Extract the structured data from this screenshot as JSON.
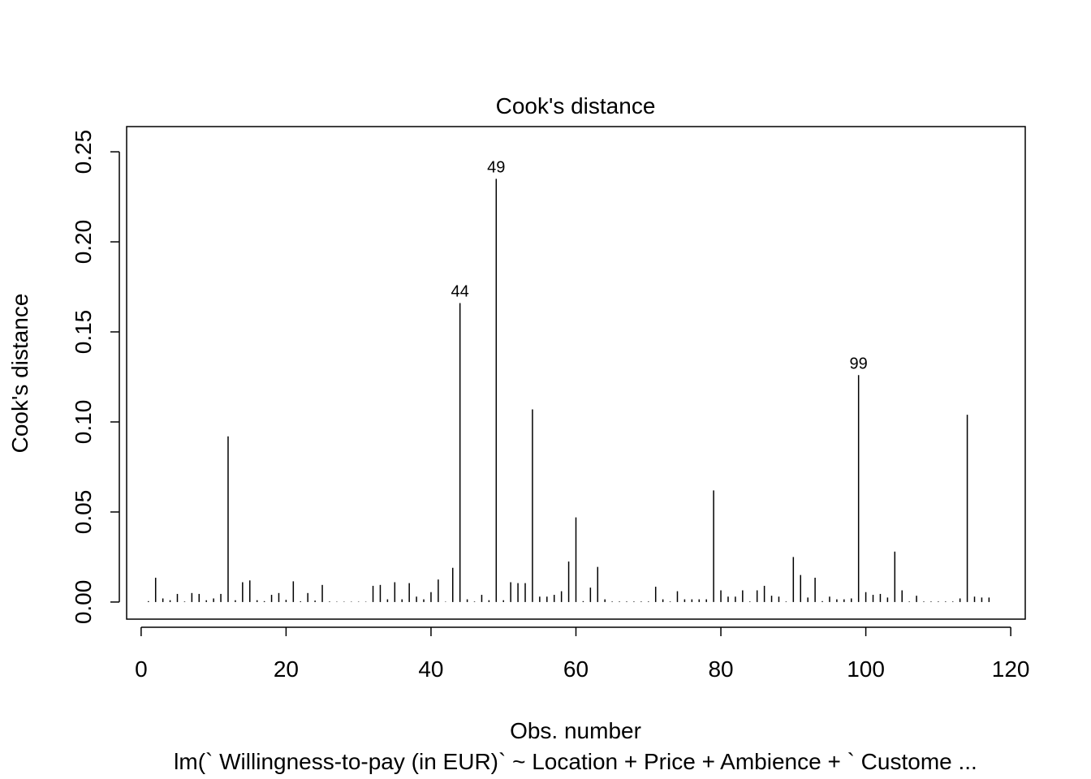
{
  "chart_data": {
    "type": "bar",
    "title": "Cook's distance",
    "xlabel": "Obs. number",
    "ylabel": "Cook's distance",
    "subtitle": "lm(` Willingness-to-pay (in EUR)` ~ Location + Price + Ambience + ` Custome ...",
    "xlim": [
      -2,
      122
    ],
    "ylim": [
      -0.0095,
      0.264
    ],
    "xticks": [
      0,
      20,
      40,
      60,
      80,
      100,
      120
    ],
    "yticks": [
      0.0,
      0.05,
      0.1,
      0.15,
      0.2,
      0.25
    ],
    "ytick_labels": [
      "0.00",
      "0.05",
      "0.10",
      "0.15",
      "0.20",
      "0.25"
    ],
    "x": [
      1,
      2,
      3,
      4,
      5,
      6,
      7,
      8,
      9,
      10,
      11,
      12,
      13,
      14,
      15,
      16,
      17,
      18,
      19,
      20,
      21,
      22,
      23,
      24,
      25,
      26,
      27,
      28,
      29,
      30,
      31,
      32,
      33,
      34,
      35,
      36,
      37,
      38,
      39,
      40,
      41,
      42,
      43,
      44,
      45,
      46,
      47,
      48,
      49,
      50,
      51,
      52,
      53,
      54,
      55,
      56,
      57,
      58,
      59,
      60,
      61,
      62,
      63,
      64,
      65,
      66,
      67,
      68,
      69,
      70,
      71,
      72,
      73,
      74,
      75,
      76,
      77,
      78,
      79,
      80,
      81,
      82,
      83,
      84,
      85,
      86,
      87,
      88,
      89,
      90,
      91,
      92,
      93,
      94,
      95,
      96,
      97,
      98,
      99,
      100,
      101,
      102,
      103,
      104,
      105,
      106,
      107,
      108,
      109,
      110,
      111,
      112,
      113,
      114,
      115,
      116,
      117
    ],
    "values": [
      0.0005,
      0.0135,
      0.002,
      0.001,
      0.0045,
      0.0003,
      0.005,
      0.0045,
      0.001,
      0.002,
      0.0045,
      0.092,
      0.001,
      0.011,
      0.012,
      0.001,
      0.0005,
      0.004,
      0.005,
      0.0012,
      0.0115,
      0.0004,
      0.005,
      0.0008,
      0.0095,
      0.0003,
      0.0002,
      0.0002,
      0.0002,
      0.0002,
      0.0002,
      0.009,
      0.0095,
      0.0015,
      0.011,
      0.0015,
      0.0105,
      0.003,
      0.0015,
      0.0055,
      0.0125,
      0.0002,
      0.019,
      0.166,
      0.0015,
      0.0003,
      0.004,
      0.001,
      0.235,
      0.001,
      0.011,
      0.0105,
      0.0105,
      0.107,
      0.003,
      0.003,
      0.004,
      0.006,
      0.0225,
      0.047,
      0.0005,
      0.008,
      0.0195,
      0.0015,
      0.0003,
      0.0003,
      0.0003,
      0.0003,
      0.0003,
      0.0003,
      0.0085,
      0.0015,
      0.0003,
      0.006,
      0.0015,
      0.0015,
      0.0015,
      0.0015,
      0.062,
      0.0065,
      0.003,
      0.003,
      0.0065,
      0.0003,
      0.0065,
      0.009,
      0.0035,
      0.003,
      0.0003,
      0.025,
      0.015,
      0.0025,
      0.0135,
      0.0005,
      0.003,
      0.0015,
      0.0015,
      0.002,
      0.126,
      0.0055,
      0.004,
      0.0045,
      0.0025,
      0.028,
      0.0065,
      0.0003,
      0.0035,
      0.0003,
      0.0003,
      0.0003,
      0.0003,
      0.0003,
      0.002,
      0.104,
      0.003,
      0.0025,
      0.0025
    ],
    "annotations": [
      {
        "x": 44,
        "label": "44"
      },
      {
        "x": 49,
        "label": "49"
      },
      {
        "x": 99,
        "label": "99"
      }
    ],
    "legend": "none",
    "grid": false
  },
  "colors": {
    "line": "#000000",
    "background": "#ffffff"
  }
}
